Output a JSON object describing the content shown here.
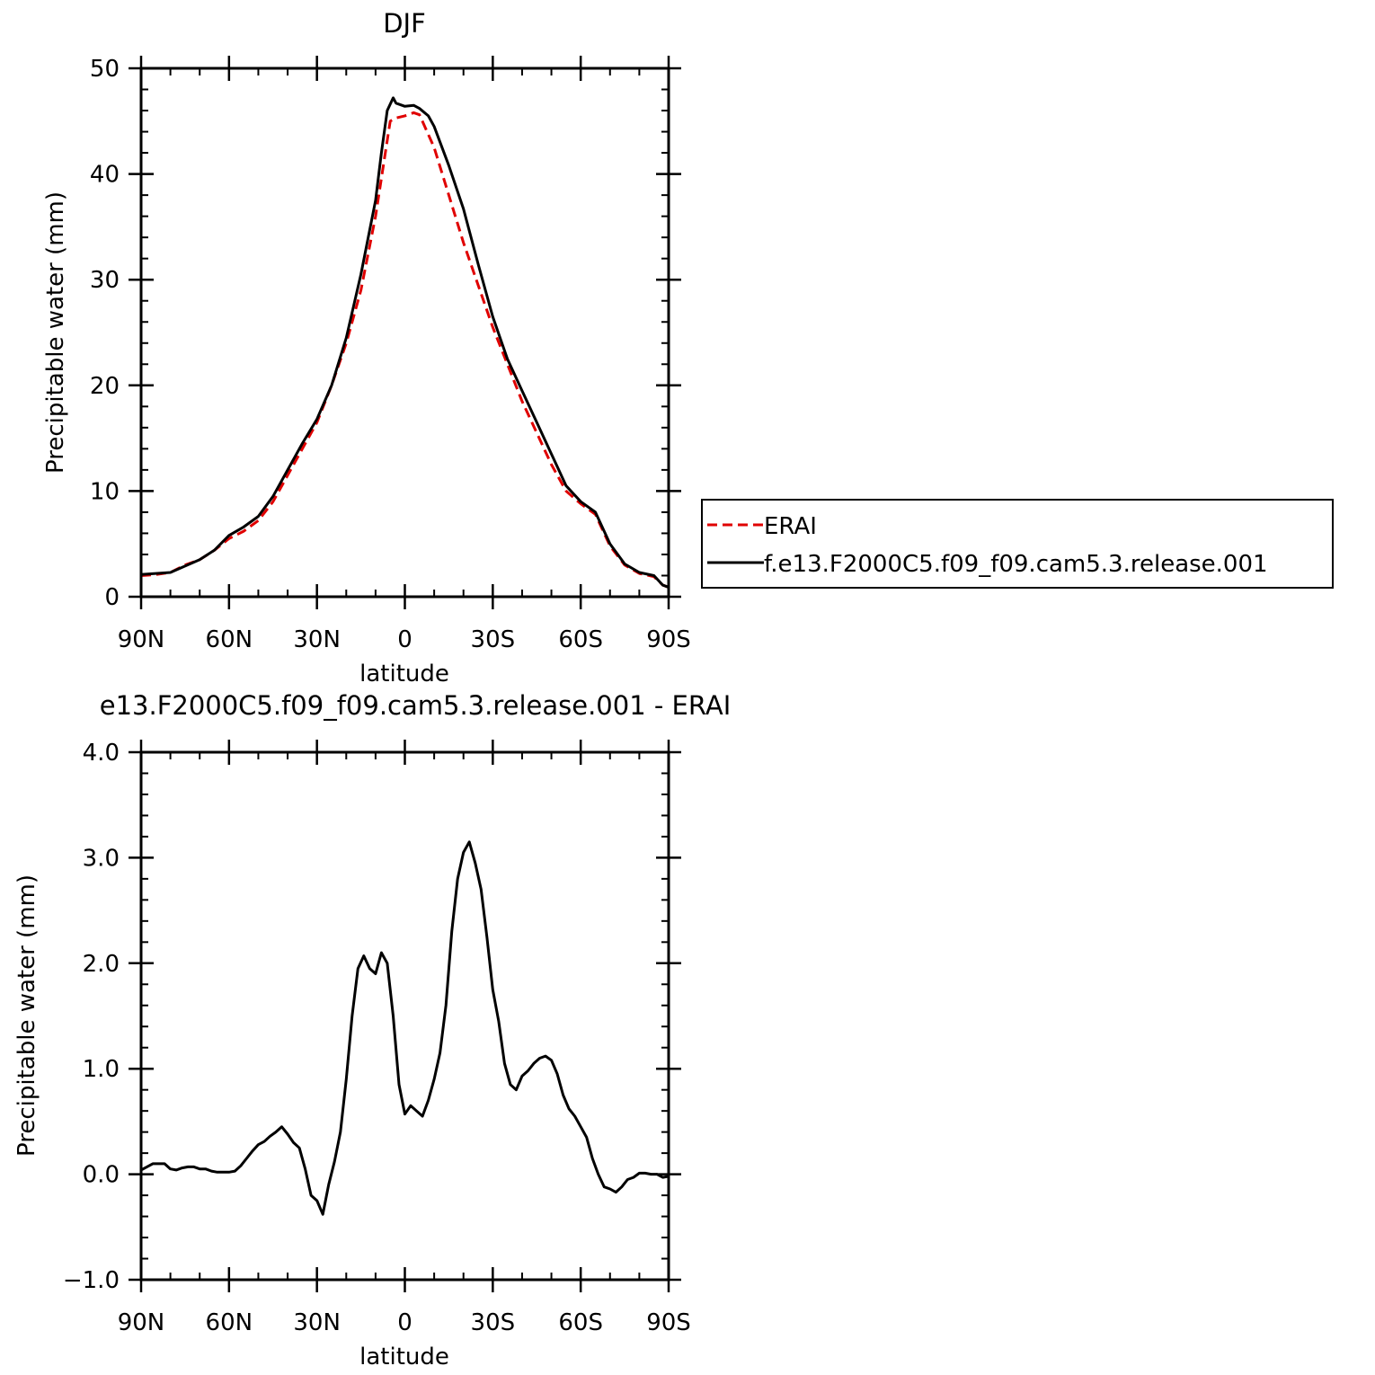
{
  "chart_data": [
    {
      "type": "line",
      "title": "DJF",
      "xlabel": "latitude",
      "ylabel": "Precipitable water (mm)",
      "xlim": [
        90,
        -90
      ],
      "ylim": [
        0,
        50
      ],
      "yticks": [
        0,
        10,
        20,
        30,
        40,
        50
      ],
      "ytick_labels": [
        "0",
        "10",
        "20",
        "30",
        "40",
        "50"
      ],
      "xticks": [
        90,
        60,
        30,
        0,
        -30,
        -60,
        -90
      ],
      "xtick_labels": [
        "90N",
        "60N",
        "30N",
        "0",
        "30S",
        "60S",
        "90S"
      ],
      "grid": false,
      "legend": "outside-right",
      "series": [
        {
          "name": "ERAI",
          "color": "#e00000",
          "dash": "dashed",
          "x": [
            90,
            85,
            80,
            75,
            70,
            65,
            60,
            55,
            50,
            45,
            40,
            35,
            30,
            25,
            20,
            15,
            10,
            5,
            3,
            0,
            -3,
            -5,
            -10,
            -15,
            -20,
            -25,
            -30,
            -35,
            -40,
            -45,
            -50,
            -55,
            -60,
            -65,
            -70,
            -75,
            -80,
            -85,
            -88,
            -90
          ],
          "y": [
            2.0,
            2.1,
            2.3,
            3.0,
            3.5,
            4.4,
            5.5,
            6.2,
            7.2,
            9.0,
            11.5,
            14.0,
            16.5,
            20.0,
            24.0,
            29.0,
            36.0,
            45.0,
            45.3,
            45.5,
            45.8,
            45.6,
            42.5,
            38.0,
            33.5,
            29.5,
            25.5,
            22.0,
            18.5,
            15.5,
            12.5,
            10.0,
            8.8,
            7.8,
            4.8,
            3.0,
            2.2,
            1.9,
            1.1,
            0.9
          ]
        },
        {
          "name": "f.e13.F2000C5.f09_f09.cam5.3.release.001",
          "color": "#000000",
          "dash": "solid",
          "x": [
            90,
            85,
            80,
            75,
            70,
            65,
            60,
            55,
            50,
            45,
            40,
            35,
            30,
            25,
            20,
            15,
            10,
            8,
            6,
            4,
            3,
            0,
            -3,
            -5,
            -8,
            -10,
            -15,
            -20,
            -25,
            -30,
            -35,
            -40,
            -45,
            -50,
            -55,
            -60,
            -65,
            -70,
            -75,
            -80,
            -85,
            -88,
            -90
          ],
          "y": [
            2.1,
            2.2,
            2.3,
            2.9,
            3.5,
            4.4,
            5.8,
            6.6,
            7.6,
            9.5,
            12.0,
            14.5,
            16.8,
            20.0,
            24.5,
            30.5,
            37.5,
            42.0,
            46.0,
            47.2,
            46.7,
            46.4,
            46.5,
            46.2,
            45.5,
            44.5,
            40.8,
            36.7,
            31.5,
            26.5,
            22.5,
            19.5,
            16.5,
            13.5,
            10.5,
            9.0,
            8.0,
            5.0,
            3.1,
            2.3,
            2.0,
            1.1,
            0.9
          ]
        }
      ]
    },
    {
      "type": "line",
      "title": "e13.F2000C5.f09_f09.cam5.3.release.001 - ERAI",
      "xlabel": "latitude",
      "ylabel": "Precipitable water (mm)",
      "xlim": [
        90,
        -90
      ],
      "ylim": [
        -1.0,
        4.0
      ],
      "yticks": [
        -1.0,
        0.0,
        1.0,
        2.0,
        3.0,
        4.0
      ],
      "ytick_labels": [
        "−1.0",
        "0.0",
        "1.0",
        "2.0",
        "3.0",
        "4.0"
      ],
      "xticks": [
        90,
        60,
        30,
        0,
        -30,
        -60,
        -90
      ],
      "xtick_labels": [
        "90N",
        "60N",
        "30N",
        "0",
        "30S",
        "60S",
        "90S"
      ],
      "grid": false,
      "series": [
        {
          "color": "#000000",
          "dash": "solid",
          "x": [
            90,
            88,
            86,
            84,
            82,
            80,
            78,
            76,
            74,
            72,
            70,
            68,
            66,
            64,
            62,
            60,
            58,
            56,
            54,
            52,
            50,
            48,
            46,
            44,
            42,
            40,
            38,
            36,
            34,
            32,
            30,
            28,
            26,
            24,
            22,
            20,
            18,
            16,
            14,
            12,
            10,
            8,
            6,
            4,
            2,
            0,
            -2,
            -4,
            -6,
            -8,
            -10,
            -12,
            -14,
            -16,
            -18,
            -20,
            -22,
            -24,
            -26,
            -28,
            -30,
            -32,
            -34,
            -36,
            -38,
            -40,
            -42,
            -44,
            -46,
            -48,
            -50,
            -52,
            -54,
            -56,
            -58,
            -60,
            -62,
            -64,
            -66,
            -68,
            -70,
            -72,
            -74,
            -76,
            -78,
            -80,
            -82,
            -84,
            -86,
            -88,
            -90
          ],
          "y": [
            0.04,
            0.07,
            0.1,
            0.1,
            0.1,
            0.05,
            0.04,
            0.06,
            0.07,
            0.07,
            0.05,
            0.05,
            0.03,
            0.02,
            0.02,
            0.02,
            0.03,
            0.08,
            0.15,
            0.22,
            0.28,
            0.31,
            0.36,
            0.4,
            0.45,
            0.38,
            0.3,
            0.25,
            0.05,
            -0.2,
            -0.25,
            -0.38,
            -0.1,
            0.12,
            0.4,
            0.9,
            1.5,
            1.95,
            2.07,
            1.95,
            1.9,
            2.1,
            2.0,
            1.5,
            0.85,
            0.57,
            0.65,
            0.6,
            0.55,
            0.7,
            0.9,
            1.15,
            1.6,
            2.3,
            2.8,
            3.05,
            3.15,
            2.95,
            2.7,
            2.25,
            1.75,
            1.45,
            1.05,
            0.85,
            0.8,
            0.93,
            0.98,
            1.05,
            1.1,
            1.12,
            1.08,
            0.95,
            0.75,
            0.62,
            0.55,
            0.45,
            0.35,
            0.15,
            0.0,
            -0.12,
            -0.14,
            -0.17,
            -0.12,
            -0.05,
            -0.03,
            0.01,
            0.01,
            0.0,
            0.0,
            -0.03,
            -0.02
          ]
        }
      ]
    }
  ]
}
